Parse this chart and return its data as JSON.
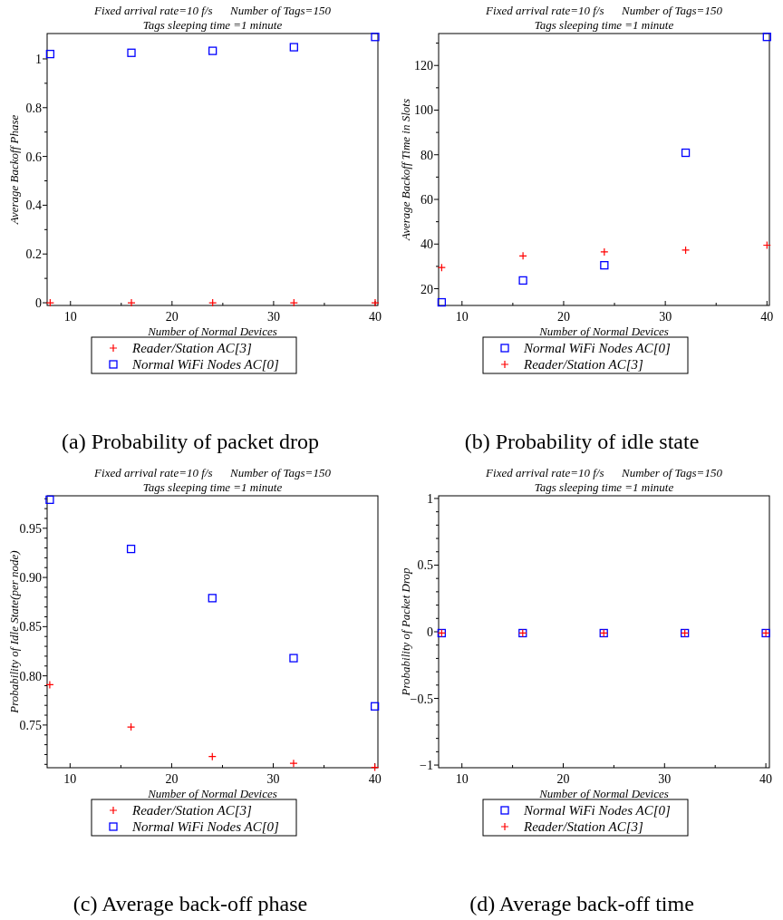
{
  "chart_data": [
    {
      "type": "scatter",
      "title": "Fixed arrival rate=10 f/s      Number of Tags=150",
      "subtitle": "Tags sleeping time =1 minute",
      "xlabel": "Number of Normal Devices",
      "ylabel": "Average Backoff Phase",
      "annotations": [
        "(a) Probability of packet drop"
      ],
      "x": [
        8,
        16,
        24,
        32,
        40
      ],
      "xlim": [
        7.7,
        40.27
      ],
      "xticks": [
        10,
        {
          "value": 15,
          "label": null
        },
        20,
        {
          "value": 25,
          "label": null
        },
        30,
        {
          "value": 35,
          "label": null
        },
        40
      ],
      "ylim": [
        -0.011,
        1.104
      ],
      "yticks": [
        0,
        {
          "value": 0.1,
          "label": null
        },
        0.2,
        {
          "value": 0.3,
          "label": null
        },
        0.4,
        {
          "value": 0.5,
          "label": null
        },
        0.6,
        {
          "value": 0.7,
          "label": null
        },
        0.8,
        {
          "value": 0.9,
          "label": null
        },
        1
      ],
      "legend": "bottom",
      "grid": false,
      "series": [
        {
          "name": "Reader/Station AC[3]",
          "color": "#ff0000",
          "marker": "cross",
          "values": [
            0,
            0,
            0,
            0,
            0
          ]
        },
        {
          "name": "Normal WiFi Nodes AC[0]",
          "color": "#0000ff",
          "marker": "square",
          "values": [
            1.02,
            1.025,
            1.033,
            1.048,
            1.09
          ]
        }
      ]
    },
    {
      "type": "scatter",
      "title": "Fixed arrival rate=10 f/s      Number of Tags=150",
      "subtitle": "Tags sleeping time =1 minute",
      "xlabel": "Number of Normal Devices",
      "ylabel": "Average Backoff Time in Slots",
      "annotations": [
        "(b) Probability of idle state"
      ],
      "x": [
        8,
        16,
        24,
        32,
        40
      ],
      "xlim": [
        7.7,
        40.24
      ],
      "xticks": [
        10,
        {
          "value": 15,
          "label": null
        },
        20,
        {
          "value": 25,
          "label": null
        },
        30,
        {
          "value": 35,
          "label": null
        },
        40
      ],
      "ylim": [
        12.5,
        134.3
      ],
      "yticks": [
        20,
        {
          "value": 30,
          "label": null
        },
        40,
        {
          "value": 50,
          "label": null
        },
        60,
        {
          "value": 70,
          "label": null
        },
        80,
        {
          "value": 90,
          "label": null
        },
        100,
        {
          "value": 110,
          "label": null
        },
        120,
        {
          "value": 130,
          "label": null
        }
      ],
      "legend": "bottom",
      "grid": false,
      "series": [
        {
          "name": "Normal WiFi Nodes AC[0]",
          "color": "#0000ff",
          "marker": "square",
          "values": [
            13.9,
            23.7,
            30.5,
            80.9,
            132.8
          ]
        },
        {
          "name": "Reader/Station AC[3]",
          "color": "#ff0000",
          "marker": "cross",
          "values": [
            29.5,
            34.7,
            36.5,
            37.3,
            39.5
          ]
        }
      ]
    },
    {
      "type": "scatter",
      "title": "Fixed arrival rate=10 f/s      Number of Tags=150",
      "subtitle": "Tags sleeping time =1 minute",
      "xlabel": "Number of Normal Devices",
      "ylabel": "Probability of Idle State(per node)",
      "annotations": [
        "(c) Average back-off phase"
      ],
      "x": [
        8,
        16,
        24,
        32,
        40
      ],
      "xlim": [
        7.74,
        40.3
      ],
      "xticks": [
        10,
        {
          "value": 15,
          "label": null
        },
        20,
        {
          "value": 25,
          "label": null
        },
        30,
        {
          "value": 35,
          "label": null
        },
        40
      ],
      "ylim": [
        0.7066,
        0.983
      ],
      "yticks": [
        {
          "value": 0.71,
          "label": null
        },
        {
          "value": 0.72,
          "label": null
        },
        {
          "value": 0.73,
          "label": null
        },
        {
          "value": 0.74,
          "label": null
        },
        {
          "value": 0.75,
          "label": "0.75"
        },
        {
          "value": 0.76,
          "label": null
        },
        {
          "value": 0.77,
          "label": null
        },
        {
          "value": 0.78,
          "label": null
        },
        {
          "value": 0.79,
          "label": null
        },
        {
          "value": 0.8,
          "label": "0.80"
        },
        {
          "value": 0.81,
          "label": null
        },
        {
          "value": 0.82,
          "label": null
        },
        {
          "value": 0.83,
          "label": null
        },
        {
          "value": 0.84,
          "label": null
        },
        {
          "value": 0.85,
          "label": "0.85"
        },
        {
          "value": 0.86,
          "label": null
        },
        {
          "value": 0.87,
          "label": null
        },
        {
          "value": 0.88,
          "label": null
        },
        {
          "value": 0.89,
          "label": null
        },
        {
          "value": 0.9,
          "label": "0.90"
        },
        {
          "value": 0.91,
          "label": null
        },
        {
          "value": 0.92,
          "label": null
        },
        {
          "value": 0.93,
          "label": null
        },
        {
          "value": 0.94,
          "label": null
        },
        {
          "value": 0.95,
          "label": "0.95"
        },
        {
          "value": 0.96,
          "label": null
        },
        {
          "value": 0.97,
          "label": null
        },
        {
          "value": 0.98,
          "label": null
        }
      ],
      "legend": "bottom",
      "grid": false,
      "series": [
        {
          "name": "Reader/Station AC[3]",
          "color": "#ff0000",
          "marker": "cross",
          "values": [
            0.791,
            0.748,
            0.718,
            0.711,
            0.707
          ]
        },
        {
          "name": "Normal WiFi Nodes AC[0]",
          "color": "#0000ff",
          "marker": "square",
          "values": [
            0.979,
            0.929,
            0.879,
            0.818,
            0.769
          ]
        }
      ]
    },
    {
      "type": "scatter",
      "title": "Fixed arrival rate=10 f/s      Number of Tags=150",
      "subtitle": "Tags sleeping time =1 minute",
      "xlabel": "Number of Normal Devices",
      "ylabel": "Probability of Packet Drop",
      "annotations": [
        "(d) Average back-off time"
      ],
      "x": [
        8,
        16,
        24,
        32,
        40
      ],
      "xlim": [
        7.7,
        40.35
      ],
      "xticks": [
        10,
        {
          "value": 15,
          "label": null
        },
        20,
        {
          "value": 25,
          "label": null
        },
        30,
        {
          "value": 35,
          "label": null
        },
        40
      ],
      "ylim": [
        -1.02,
        1.02
      ],
      "yticks": [
        {
          "value": -1,
          "label": "−1"
        },
        {
          "value": -0.9,
          "label": null
        },
        {
          "value": -0.8,
          "label": null
        },
        {
          "value": -0.7,
          "label": null
        },
        {
          "value": -0.6,
          "label": null
        },
        {
          "value": -0.5,
          "label": "−0.5"
        },
        {
          "value": -0.4,
          "label": null
        },
        {
          "value": -0.3,
          "label": null
        },
        {
          "value": -0.2,
          "label": null
        },
        {
          "value": -0.1,
          "label": null
        },
        0,
        {
          "value": 0.1,
          "label": null
        },
        {
          "value": 0.2,
          "label": null
        },
        {
          "value": 0.3,
          "label": null
        },
        {
          "value": 0.4,
          "label": null
        },
        0.5,
        {
          "value": 0.6,
          "label": null
        },
        {
          "value": 0.7,
          "label": null
        },
        {
          "value": 0.8,
          "label": null
        },
        {
          "value": 0.9,
          "label": null
        },
        1
      ],
      "legend": "bottom",
      "grid": false,
      "series": [
        {
          "name": "Normal WiFi Nodes AC[0]",
          "color": "#0000ff",
          "marker": "square",
          "values": [
            -0.01,
            -0.01,
            -0.01,
            -0.01,
            -0.01
          ]
        },
        {
          "name": "Reader/Station AC[3]",
          "color": "#ff0000",
          "marker": "cross",
          "values": [
            -0.01,
            -0.01,
            -0.01,
            -0.01,
            -0.01
          ]
        }
      ]
    }
  ]
}
